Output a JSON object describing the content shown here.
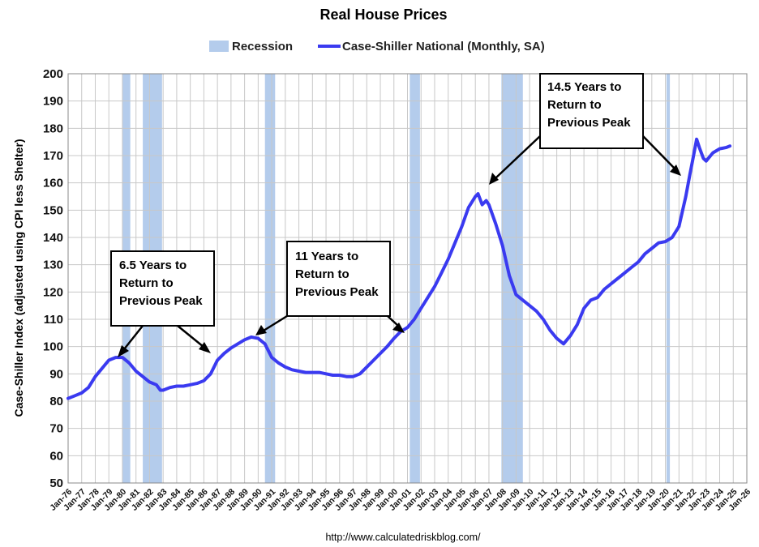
{
  "chart_data": {
    "type": "line",
    "title": "Real House Prices",
    "ylabel": "Case-Shiller Index (adjusted using CPI less Shelter)",
    "xlabel": "",
    "source": "http://www.calculatedriskblog.com/",
    "ylim": [
      50,
      200
    ],
    "yticks": [
      "50",
      "60",
      "70",
      "80",
      "90",
      "100",
      "110",
      "120",
      "130",
      "140",
      "150",
      "160",
      "170",
      "180",
      "190",
      "200"
    ],
    "xlim": [
      1976.0,
      2026.0
    ],
    "xtick_labels": [
      "Jan-76",
      "Jan-77",
      "Jan-78",
      "Jan-79",
      "Jan-80",
      "Jan-81",
      "Jan-82",
      "Jan-83",
      "Jan-84",
      "Jan-85",
      "Jan-86",
      "Jan-87",
      "Jan-88",
      "Jan-89",
      "Jan-90",
      "Jan-91",
      "Jan-92",
      "Jan-93",
      "Jan-94",
      "Jan-95",
      "Jan-96",
      "Jan-97",
      "Jan-98",
      "Jan-99",
      "Jan-00",
      "Jan-01",
      "Jan-02",
      "Jan-03",
      "Jan-04",
      "Jan-05",
      "Jan-06",
      "Jan-07",
      "Jan-08",
      "Jan-09",
      "Jan-10",
      "Jan-11",
      "Jan-12",
      "Jan-13",
      "Jan-14",
      "Jan-15",
      "Jan-16",
      "Jan-17",
      "Jan-18",
      "Jan-19",
      "Jan-20",
      "Jan-21",
      "Jan-22",
      "Jan-23",
      "Jan-24",
      "Jan-25",
      "Jan-26"
    ],
    "grid": true,
    "legend": {
      "placement": "top-center",
      "entries": [
        {
          "name": "Recession",
          "color": "#b4ccec"
        },
        {
          "name": "Case-Shiller National (Monthly, SA)",
          "color": "#3a3af0"
        }
      ]
    },
    "recessions": [
      {
        "start": 1980.0,
        "end": 1980.58
      },
      {
        "start": 1981.5,
        "end": 1982.92
      },
      {
        "start": 1990.5,
        "end": 1991.25
      },
      {
        "start": 2001.17,
        "end": 2001.92
      },
      {
        "start": 2007.92,
        "end": 2009.5
      },
      {
        "start": 2020.08,
        "end": 2020.33
      }
    ],
    "series": [
      {
        "name": "Case-Shiller National (Monthly, SA)",
        "color": "#3a3af0",
        "x": [
          1976.0,
          1976.5,
          1977.0,
          1977.5,
          1978.0,
          1978.5,
          1979.0,
          1979.5,
          1980.0,
          1980.5,
          1981.0,
          1981.5,
          1982.0,
          1982.5,
          1982.8,
          1983.0,
          1983.5,
          1984.0,
          1984.5,
          1985.0,
          1985.5,
          1986.0,
          1986.5,
          1987.0,
          1987.5,
          1988.0,
          1988.5,
          1989.0,
          1989.5,
          1990.0,
          1990.5,
          1991.0,
          1991.5,
          1992.0,
          1992.5,
          1993.0,
          1993.5,
          1994.0,
          1994.5,
          1995.0,
          1995.5,
          1996.0,
          1996.5,
          1997.0,
          1997.5,
          1998.0,
          1998.5,
          1999.0,
          1999.5,
          2000.0,
          2000.5,
          2001.0,
          2001.5,
          2002.0,
          2002.5,
          2003.0,
          2003.5,
          2004.0,
          2004.5,
          2005.0,
          2005.5,
          2006.0,
          2006.2,
          2006.5,
          2006.8,
          2007.0,
          2007.5,
          2008.0,
          2008.5,
          2009.0,
          2009.5,
          2010.0,
          2010.5,
          2011.0,
          2011.5,
          2012.0,
          2012.5,
          2013.0,
          2013.5,
          2014.0,
          2014.5,
          2015.0,
          2015.5,
          2016.0,
          2016.5,
          2017.0,
          2017.5,
          2018.0,
          2018.5,
          2019.0,
          2019.5,
          2020.0,
          2020.5,
          2021.0,
          2021.5,
          2021.8,
          2022.0,
          2022.3,
          2022.5,
          2022.8,
          2023.0,
          2023.5,
          2024.0,
          2024.5,
          2024.75
        ],
        "y": [
          81,
          82,
          83,
          85,
          89,
          92,
          95,
          96,
          96,
          94,
          91,
          89,
          87,
          86,
          84,
          84,
          85,
          85.5,
          85.5,
          86,
          86.5,
          87.5,
          90,
          95,
          97.5,
          99.5,
          101,
          102.5,
          103.5,
          103,
          101,
          96,
          94,
          92.5,
          91.5,
          91,
          90.5,
          90.5,
          90.5,
          90,
          89.5,
          89.5,
          89,
          89,
          90,
          92.5,
          95,
          97.5,
          100,
          103,
          105.5,
          107,
          110,
          114,
          118,
          122,
          127,
          132,
          138,
          144,
          151,
          155,
          156,
          152,
          153.5,
          152,
          145,
          137,
          126,
          119,
          117,
          115,
          113,
          110,
          106,
          103,
          101,
          104,
          108,
          114,
          117,
          118,
          121,
          123,
          125,
          127,
          129,
          131,
          134,
          136,
          138,
          138.5,
          140,
          144,
          155,
          163,
          168,
          176,
          173,
          169,
          168,
          171,
          172.5,
          173,
          173.5
        ]
      }
    ],
    "annotations": [
      {
        "text_lines": [
          "6.5 Years to",
          "Return to",
          "Previous Peak"
        ]
      },
      {
        "text_lines": [
          "11 Years to",
          "Return to",
          "Previous Peak"
        ]
      },
      {
        "text_lines": [
          "14.5 Years to",
          "Return to",
          "Previous Peak"
        ]
      }
    ]
  }
}
